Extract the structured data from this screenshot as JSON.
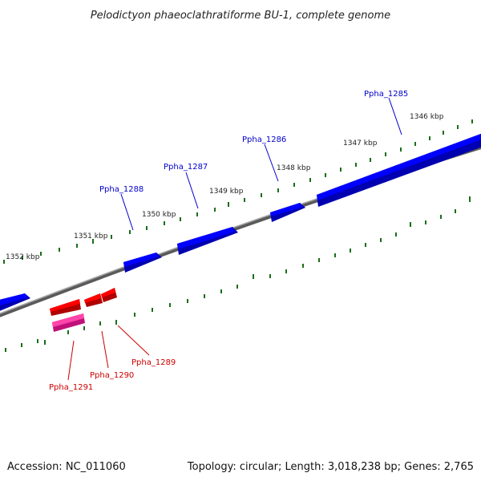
{
  "title": "Pelodictyon phaeoclathratiforme BU-1, complete genome",
  "footer": {
    "accession": "Accession: NC_011060",
    "summary": "Topology: circular; Length: 3,018,238 bp; Genes: 2,765"
  },
  "ticks": {
    "k1346": "1346 kbp",
    "k1347": "1347 kbp",
    "k1348": "1348 kbp",
    "k1349": "1349 kbp",
    "k1350": "1350 kbp",
    "k1351": "1351 kbp",
    "k1352": "1352 kbp"
  },
  "genes": {
    "g1285": "Ppha_1285",
    "g1286": "Ppha_1286",
    "g1287": "Ppha_1287",
    "g1288": "Ppha_1288",
    "g1289": "Ppha_1289",
    "g1290": "Ppha_1290",
    "g1291": "Ppha_1291"
  },
  "colors": {
    "forward_strand": "#0000ee",
    "reverse_strand": "#ee0000",
    "pink_feature": "#e0208c",
    "backbone": "#808080",
    "tick": "#1a6e1a",
    "forward_label": "#0000cc",
    "reverse_label": "#cc0000"
  }
}
